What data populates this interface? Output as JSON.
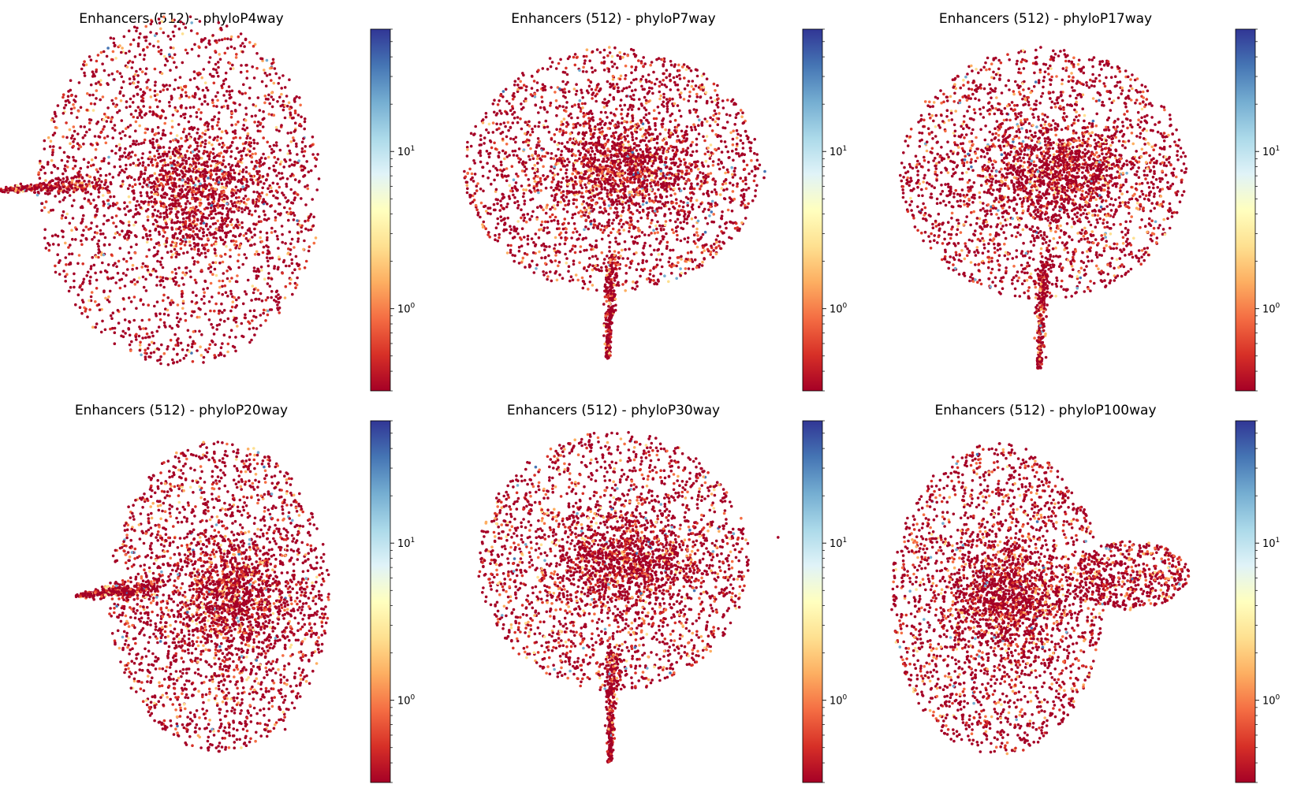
{
  "figure": {
    "colormap": "RdYlBu",
    "point_colors": [
      "#a50026",
      "#d73027",
      "#f46d43",
      "#fdae61",
      "#fee090",
      "#74add1",
      "#4575b4"
    ],
    "colorbar": {
      "scale": "log",
      "vmin": 0.3,
      "vmax": 60,
      "ticks": [
        {
          "value": 1,
          "base": "10",
          "exp": "0"
        },
        {
          "value": 10,
          "base": "10",
          "exp": "1"
        }
      ]
    }
  },
  "chart_data": [
    {
      "type": "scatter",
      "title": "Enhancers (512) - phyloP4way",
      "shape": "tail-left",
      "n_points": 3400,
      "xlim": null,
      "ylim": null,
      "color_scale": "log"
    },
    {
      "type": "scatter",
      "title": "Enhancers (512) - phyloP7way",
      "shape": "stem-bottom",
      "n_points": 3400,
      "xlim": null,
      "ylim": null,
      "color_scale": "log"
    },
    {
      "type": "scatter",
      "title": "Enhancers (512) - phyloP17way",
      "shape": "stem-bottom",
      "n_points": 3400,
      "xlim": null,
      "ylim": null,
      "color_scale": "log"
    },
    {
      "type": "scatter",
      "title": "Enhancers (512) - phyloP20way",
      "shape": "tail-left",
      "n_points": 3400,
      "xlim": null,
      "ylim": null,
      "color_scale": "log"
    },
    {
      "type": "scatter",
      "title": "Enhancers (512) - phyloP30way",
      "shape": "stem-bottom",
      "n_points": 3400,
      "xlim": null,
      "ylim": null,
      "color_scale": "log"
    },
    {
      "type": "scatter",
      "title": "Enhancers (512) - phyloP100way",
      "shape": "lobe-right",
      "n_points": 3400,
      "xlim": null,
      "ylim": null,
      "color_scale": "log"
    }
  ]
}
